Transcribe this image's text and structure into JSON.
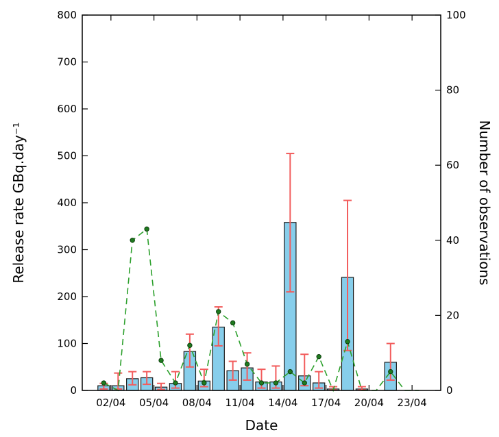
{
  "chart_data": {
    "type": "bar",
    "xlabel": "Date",
    "ylabel": "Release rate GBq.day⁻¹",
    "y2label": "Number of observations",
    "ylim": [
      0,
      800
    ],
    "y2lim": [
      0,
      100
    ],
    "yticks": [
      "0",
      "100",
      "200",
      "300",
      "400",
      "500",
      "600",
      "700",
      "800"
    ],
    "y2ticks": [
      "0",
      "20",
      "40",
      "60",
      "80",
      "100"
    ],
    "xticks": [
      "02/04",
      "05/04",
      "08/04",
      "11/04",
      "14/04",
      "17/04",
      "20/04",
      "23/04"
    ],
    "xtick_days": [
      2,
      5,
      8,
      11,
      14,
      17,
      20,
      23
    ],
    "xlim_days": [
      0,
      25
    ],
    "grid": false,
    "bar_color": "#87ceeb",
    "error_color": "#f25c5c",
    "obs_color": "#2ca02c",
    "days": [
      1.5,
      2.5,
      3.5,
      4.5,
      5.5,
      6.5,
      7.5,
      8.5,
      9.5,
      10.5,
      11.5,
      12.5,
      13.5,
      14.5,
      15.5,
      16.5,
      17.5,
      18.5,
      19.5,
      20.5,
      21.5,
      22.5,
      23.5
    ],
    "release_rate": [
      10,
      10,
      25,
      27,
      7,
      15,
      83,
      20,
      135,
      42,
      48,
      18,
      18,
      358,
      31,
      16,
      3,
      241,
      3,
      0,
      60,
      0,
      0
    ],
    "error_low": [
      3,
      3,
      12,
      13,
      2,
      5,
      50,
      8,
      95,
      22,
      22,
      5,
      5,
      210,
      10,
      5,
      1,
      85,
      1,
      0,
      22,
      0,
      0
    ],
    "error_high": [
      15,
      37,
      40,
      40,
      15,
      40,
      120,
      45,
      178,
      62,
      80,
      45,
      52,
      505,
      77,
      40,
      8,
      405,
      8,
      0,
      100,
      0,
      0
    ],
    "observations": [
      2,
      0,
      40,
      43,
      8,
      2,
      12,
      2,
      21,
      18,
      7,
      2,
      2,
      5,
      2,
      9,
      0,
      13,
      0,
      0,
      5,
      0,
      0
    ]
  }
}
